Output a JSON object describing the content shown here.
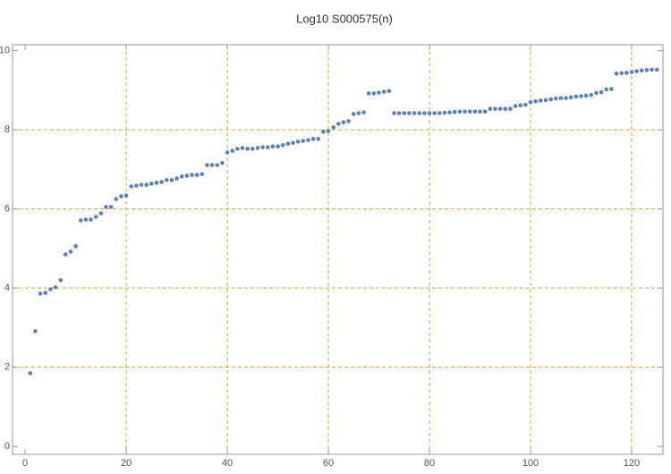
{
  "chart_data": {
    "type": "scatter",
    "title": "Log10 S000575(n)",
    "x": [
      1,
      2,
      3,
      4,
      5,
      6,
      7,
      8,
      9,
      10,
      11,
      12,
      13,
      14,
      15,
      16,
      17,
      18,
      19,
      20,
      21,
      22,
      23,
      24,
      25,
      26,
      27,
      28,
      29,
      30,
      31,
      32,
      33,
      34,
      35,
      36,
      37,
      38,
      39,
      40,
      41,
      42,
      43,
      44,
      45,
      46,
      47,
      48,
      49,
      50,
      51,
      52,
      53,
      54,
      55,
      56,
      57,
      58,
      59,
      60,
      61,
      62,
      63,
      64,
      65,
      66,
      67,
      68,
      69,
      70,
      71,
      72,
      73,
      74,
      75,
      76,
      77,
      78,
      79,
      80,
      81,
      82,
      83,
      84,
      85,
      86,
      87,
      88,
      89,
      90,
      91,
      92,
      93,
      94,
      95,
      96,
      97,
      98,
      99,
      100,
      101,
      102,
      103,
      104,
      105,
      106,
      107,
      108,
      109,
      110,
      111,
      112,
      113,
      114,
      115,
      116,
      117,
      118,
      119,
      120,
      121,
      122,
      123,
      124,
      125
    ],
    "values": [
      1.85,
      2.91,
      3.86,
      3.88,
      3.97,
      4.02,
      4.2,
      4.85,
      4.92,
      5.06,
      5.71,
      5.73,
      5.73,
      5.8,
      5.89,
      6.05,
      6.05,
      6.25,
      6.32,
      6.34,
      6.57,
      6.59,
      6.61,
      6.61,
      6.64,
      6.66,
      6.68,
      6.73,
      6.73,
      6.77,
      6.82,
      6.84,
      6.86,
      6.86,
      6.88,
      7.11,
      7.11,
      7.11,
      7.16,
      7.43,
      7.47,
      7.52,
      7.54,
      7.52,
      7.52,
      7.54,
      7.56,
      7.56,
      7.58,
      7.58,
      7.61,
      7.65,
      7.67,
      7.7,
      7.72,
      7.74,
      7.77,
      7.77,
      7.95,
      7.97,
      8.06,
      8.15,
      8.19,
      8.22,
      8.4,
      8.42,
      8.44,
      8.92,
      8.92,
      8.94,
      8.96,
      8.98,
      8.42,
      8.42,
      8.42,
      8.42,
      8.42,
      8.42,
      8.42,
      8.42,
      8.42,
      8.42,
      8.43,
      8.44,
      8.45,
      8.46,
      8.46,
      8.46,
      8.46,
      8.46,
      8.46,
      8.53,
      8.53,
      8.53,
      8.53,
      8.53,
      8.6,
      8.62,
      8.63,
      8.7,
      8.72,
      8.74,
      8.75,
      8.77,
      8.79,
      8.8,
      8.8,
      8.82,
      8.84,
      8.85,
      8.86,
      8.88,
      8.93,
      8.95,
      9.02,
      9.03,
      9.42,
      9.43,
      9.44,
      9.46,
      9.48,
      9.5,
      9.51,
      9.52,
      9.52
    ],
    "color": "#5e81b5",
    "xlim": [
      -2.5,
      126.2
    ],
    "ylim": [
      -0.2,
      10.15
    ],
    "xticks": [
      0,
      20,
      40,
      60,
      80,
      100,
      120
    ],
    "yticks": [
      0,
      2,
      4,
      6,
      8,
      10
    ],
    "xgrid": [
      20,
      40,
      60,
      80,
      100,
      120
    ],
    "ygrid": [
      2,
      4,
      6,
      8
    ],
    "grid_color": "#e8a030"
  }
}
